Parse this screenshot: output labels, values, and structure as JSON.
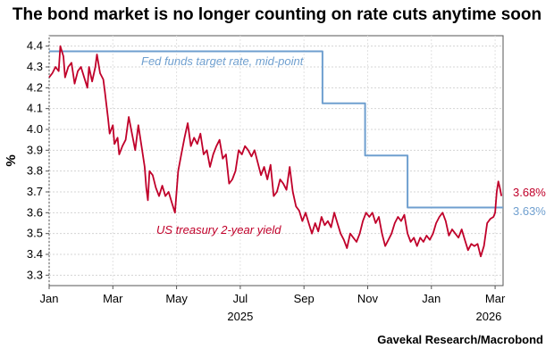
{
  "chart_data": {
    "type": "line",
    "title": "The bond market is no longer counting on rate cuts anytime soon",
    "ylabel": "%",
    "ylim": [
      3.25,
      4.45
    ],
    "yticks": [
      3.3,
      3.4,
      3.5,
      3.6,
      3.7,
      3.8,
      3.9,
      4.0,
      4.1,
      4.2,
      4.3,
      4.4
    ],
    "x_range": [
      0,
      14.25
    ],
    "x_ticks": [
      {
        "month": "Jan",
        "x": 0
      },
      {
        "month": "Mar",
        "x": 2
      },
      {
        "month": "May",
        "x": 4
      },
      {
        "month": "Jul",
        "x": 6
      },
      {
        "month": "Sep",
        "x": 8
      },
      {
        "month": "Nov",
        "x": 10
      },
      {
        "month": "Jan",
        "x": 12
      },
      {
        "month": "Mar",
        "x": 14
      }
    ],
    "year_labels": [
      {
        "year": "2025",
        "x": 6
      },
      {
        "year": "2026",
        "x": 13.8
      }
    ],
    "grid": true,
    "series": [
      {
        "name": "Fed funds target rate, mid-point",
        "color": "#6f9fcf",
        "step": true,
        "end_label": "3.63%",
        "points": [
          [
            0,
            4.375
          ],
          [
            8.58,
            4.375
          ],
          [
            8.58,
            4.125
          ],
          [
            9.92,
            4.125
          ],
          [
            9.92,
            3.875
          ],
          [
            11.25,
            3.875
          ],
          [
            11.25,
            3.625
          ],
          [
            14.25,
            3.625
          ]
        ]
      },
      {
        "name": "US treasury 2-year yield",
        "color": "#c0002a",
        "step": false,
        "end_label": "3.68%",
        "points": [
          [
            0,
            4.25
          ],
          [
            0.1,
            4.27
          ],
          [
            0.2,
            4.3
          ],
          [
            0.3,
            4.28
          ],
          [
            0.35,
            4.4
          ],
          [
            0.45,
            4.35
          ],
          [
            0.5,
            4.25
          ],
          [
            0.6,
            4.3
          ],
          [
            0.7,
            4.32
          ],
          [
            0.8,
            4.22
          ],
          [
            0.9,
            4.28
          ],
          [
            1.0,
            4.3
          ],
          [
            1.1,
            4.25
          ],
          [
            1.2,
            4.2
          ],
          [
            1.25,
            4.3
          ],
          [
            1.35,
            4.23
          ],
          [
            1.45,
            4.3
          ],
          [
            1.5,
            4.36
          ],
          [
            1.6,
            4.27
          ],
          [
            1.7,
            4.24
          ],
          [
            1.75,
            4.18
          ],
          [
            1.85,
            4.05
          ],
          [
            1.9,
            3.98
          ],
          [
            2.0,
            4.02
          ],
          [
            2.05,
            3.93
          ],
          [
            2.15,
            3.96
          ],
          [
            2.2,
            3.88
          ],
          [
            2.3,
            3.92
          ],
          [
            2.4,
            3.95
          ],
          [
            2.5,
            4.06
          ],
          [
            2.6,
            3.98
          ],
          [
            2.7,
            3.9
          ],
          [
            2.8,
            4.02
          ],
          [
            2.9,
            3.92
          ],
          [
            3.0,
            3.82
          ],
          [
            3.05,
            3.72
          ],
          [
            3.1,
            3.66
          ],
          [
            3.15,
            3.8
          ],
          [
            3.25,
            3.78
          ],
          [
            3.35,
            3.72
          ],
          [
            3.45,
            3.68
          ],
          [
            3.55,
            3.73
          ],
          [
            3.65,
            3.68
          ],
          [
            3.75,
            3.7
          ],
          [
            3.85,
            3.65
          ],
          [
            3.95,
            3.6
          ],
          [
            4.05,
            3.8
          ],
          [
            4.15,
            3.88
          ],
          [
            4.25,
            3.96
          ],
          [
            4.35,
            4.03
          ],
          [
            4.45,
            3.92
          ],
          [
            4.55,
            3.96
          ],
          [
            4.65,
            3.93
          ],
          [
            4.75,
            3.98
          ],
          [
            4.85,
            3.88
          ],
          [
            4.95,
            3.9
          ],
          [
            5.05,
            3.82
          ],
          [
            5.15,
            3.88
          ],
          [
            5.25,
            3.92
          ],
          [
            5.35,
            3.95
          ],
          [
            5.45,
            3.86
          ],
          [
            5.55,
            3.88
          ],
          [
            5.65,
            3.74
          ],
          [
            5.75,
            3.76
          ],
          [
            5.85,
            3.8
          ],
          [
            5.95,
            3.9
          ],
          [
            6.05,
            3.88
          ],
          [
            6.15,
            3.92
          ],
          [
            6.25,
            3.9
          ],
          [
            6.35,
            3.87
          ],
          [
            6.45,
            3.9
          ],
          [
            6.55,
            3.84
          ],
          [
            6.65,
            3.78
          ],
          [
            6.75,
            3.82
          ],
          [
            6.85,
            3.76
          ],
          [
            6.95,
            3.83
          ],
          [
            7.05,
            3.68
          ],
          [
            7.15,
            3.7
          ],
          [
            7.25,
            3.76
          ],
          [
            7.35,
            3.74
          ],
          [
            7.45,
            3.71
          ],
          [
            7.55,
            3.82
          ],
          [
            7.65,
            3.7
          ],
          [
            7.75,
            3.63
          ],
          [
            7.85,
            3.61
          ],
          [
            7.95,
            3.56
          ],
          [
            8.05,
            3.6
          ],
          [
            8.15,
            3.55
          ],
          [
            8.25,
            3.5
          ],
          [
            8.35,
            3.55
          ],
          [
            8.45,
            3.51
          ],
          [
            8.55,
            3.58
          ],
          [
            8.65,
            3.54
          ],
          [
            8.75,
            3.56
          ],
          [
            8.85,
            3.53
          ],
          [
            8.95,
            3.6
          ],
          [
            9.05,
            3.55
          ],
          [
            9.15,
            3.5
          ],
          [
            9.25,
            3.47
          ],
          [
            9.35,
            3.43
          ],
          [
            9.45,
            3.5
          ],
          [
            9.55,
            3.48
          ],
          [
            9.65,
            3.46
          ],
          [
            9.75,
            3.5
          ],
          [
            9.85,
            3.56
          ],
          [
            9.95,
            3.6
          ],
          [
            10.05,
            3.58
          ],
          [
            10.15,
            3.6
          ],
          [
            10.25,
            3.55
          ],
          [
            10.35,
            3.58
          ],
          [
            10.45,
            3.5
          ],
          [
            10.55,
            3.44
          ],
          [
            10.65,
            3.47
          ],
          [
            10.75,
            3.5
          ],
          [
            10.85,
            3.55
          ],
          [
            10.95,
            3.58
          ],
          [
            11.05,
            3.56
          ],
          [
            11.15,
            3.59
          ],
          [
            11.25,
            3.5
          ],
          [
            11.35,
            3.46
          ],
          [
            11.45,
            3.48
          ],
          [
            11.55,
            3.44
          ],
          [
            11.65,
            3.48
          ],
          [
            11.75,
            3.46
          ],
          [
            11.85,
            3.49
          ],
          [
            11.95,
            3.47
          ],
          [
            12.05,
            3.5
          ],
          [
            12.15,
            3.55
          ],
          [
            12.25,
            3.58
          ],
          [
            12.35,
            3.6
          ],
          [
            12.45,
            3.56
          ],
          [
            12.55,
            3.49
          ],
          [
            12.65,
            3.52
          ],
          [
            12.75,
            3.5
          ],
          [
            12.85,
            3.48
          ],
          [
            12.95,
            3.52
          ],
          [
            13.05,
            3.47
          ],
          [
            13.15,
            3.42
          ],
          [
            13.25,
            3.45
          ],
          [
            13.35,
            3.44
          ],
          [
            13.45,
            3.45
          ],
          [
            13.55,
            3.39
          ],
          [
            13.65,
            3.44
          ],
          [
            13.75,
            3.55
          ],
          [
            13.85,
            3.57
          ],
          [
            13.95,
            3.58
          ],
          [
            14.0,
            3.6
          ],
          [
            14.05,
            3.7
          ],
          [
            14.1,
            3.75
          ],
          [
            14.15,
            3.72
          ],
          [
            14.2,
            3.68
          ]
        ]
      }
    ],
    "annotations": [
      {
        "text": "Fed funds target rate, mid-point",
        "series": 0
      },
      {
        "text": "US treasury 2-year yield",
        "series": 1
      }
    ]
  },
  "footer": {
    "source": "Gavekal Research/Macrobond"
  }
}
